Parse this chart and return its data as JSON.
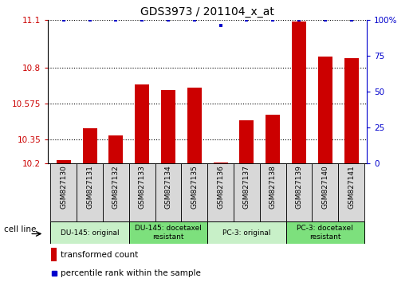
{
  "title": "GDS3973 / 201104_x_at",
  "samples": [
    "GSM827130",
    "GSM827131",
    "GSM827132",
    "GSM827133",
    "GSM827134",
    "GSM827135",
    "GSM827136",
    "GSM827137",
    "GSM827138",
    "GSM827139",
    "GSM827140",
    "GSM827141"
  ],
  "bar_values": [
    10.22,
    10.42,
    10.375,
    10.695,
    10.66,
    10.675,
    10.205,
    10.47,
    10.505,
    11.09,
    10.87,
    10.86
  ],
  "percentile_values": [
    100,
    100,
    100,
    100,
    100,
    100,
    96,
    100,
    100,
    100,
    100,
    100
  ],
  "bar_color": "#cc0000",
  "dot_color": "#0000cc",
  "ylim_left": [
    10.2,
    11.1
  ],
  "ylim_right": [
    0,
    100
  ],
  "yticks_left": [
    10.2,
    10.35,
    10.575,
    10.8,
    11.1
  ],
  "yticks_right": [
    0,
    25,
    50,
    75,
    100
  ],
  "ytick_labels_left": [
    "10.2",
    "10.35",
    "10.575",
    "10.8",
    "11.1"
  ],
  "ytick_labels_right": [
    "0",
    "25",
    "50",
    "75",
    "100%"
  ],
  "groups": [
    {
      "label": "DU-145: original",
      "start": 0,
      "end": 3,
      "color": "#c8f0c8"
    },
    {
      "label": "DU-145: docetaxel\nresistant",
      "start": 3,
      "end": 6,
      "color": "#7de07d"
    },
    {
      "label": "PC-3: original",
      "start": 6,
      "end": 9,
      "color": "#c8f0c8"
    },
    {
      "label": "PC-3: docetaxel\nresistant",
      "start": 9,
      "end": 12,
      "color": "#7de07d"
    }
  ],
  "cell_line_label": "cell line",
  "legend_bar_label": "transformed count",
  "legend_dot_label": "percentile rank within the sample",
  "bar_width": 0.55,
  "tick_color_left": "#cc0000",
  "tick_color_right": "#0000cc",
  "background_color": "#ffffff",
  "plot_bg_color": "#ffffff",
  "sample_box_color": "#d8d8d8"
}
